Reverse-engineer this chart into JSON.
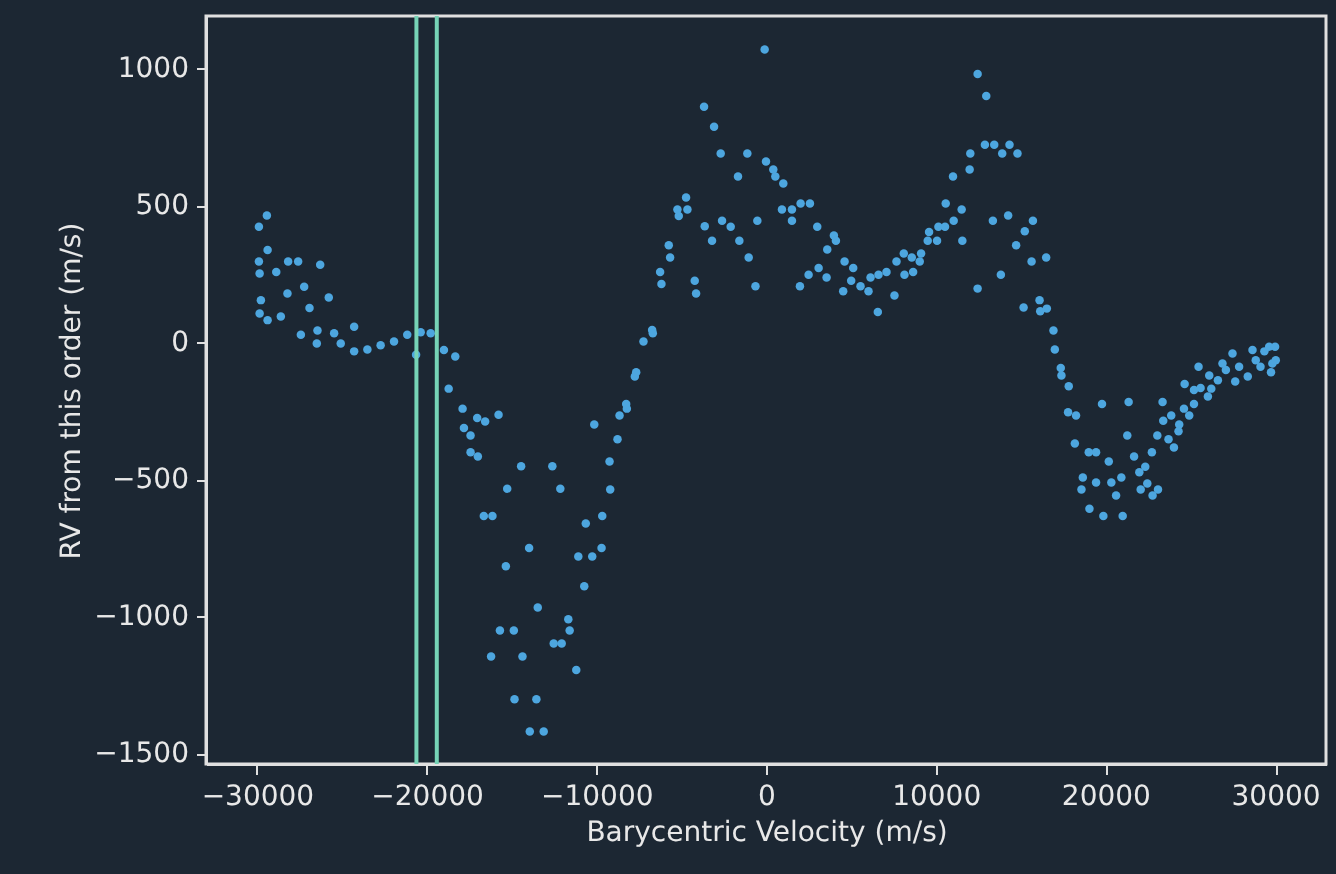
{
  "chart_data": {
    "type": "scatter",
    "xlabel": "Barycentric Velocity (m/s)",
    "ylabel": "RV from this order (m/s)",
    "x": [
      -29412,
      -29882,
      -29370,
      -29882,
      -28160,
      -27570,
      -26270,
      -29840,
      -28860,
      -27215,
      -25765,
      -29765,
      -28200,
      -26900,
      -29840,
      -28590,
      -29370,
      -27410,
      -24270,
      -26430,
      -25450,
      -26470,
      -25060,
      -24270,
      -23490,
      -22710,
      -21920,
      -21140,
      -20350,
      -19760,
      -20620,
      -18980,
      -18310,
      -18700,
      -17880,
      -17800,
      -17410,
      -17020,
      -16550,
      -15760,
      -17410,
      -16980,
      -14430,
      -12590,
      -15250,
      -12120,
      -16630,
      -16120,
      -10620,
      -10120,
      -13960,
      -11060,
      -10240,
      -15330,
      -10710,
      -13450,
      -11650,
      -15680,
      -14860,
      -11570,
      -12510,
      -12040,
      -16200,
      -14350,
      -11180,
      -14820,
      -13530,
      -13920,
      -13100,
      -9690,
      -9650,
      -9180,
      -9220,
      -8750,
      -8630,
      -8200,
      -8240,
      -7730,
      -7650,
      -7220,
      -6710,
      -6670,
      -6160,
      -6240,
      -5650,
      -5730,
      -4200,
      -4120,
      -5220,
      -5140,
      -4710,
      -4630,
      -3650,
      -3060,
      -2670,
      -3610,
      -3180,
      -2590,
      -2080,
      -1650,
      -1100,
      -1570,
      -1020,
      -620,
      -510,
      -80,
      0,
      430,
      550,
      1020,
      940,
      1530,
      1530,
      2040,
      2590,
      2000,
      2510,
      3020,
      3100,
      3570,
      3610,
      4000,
      4120,
      4630,
      4550,
      5020,
      5140,
      5570,
      6040,
      6160,
      6590,
      6630,
      7100,
      7570,
      7690,
      8120,
      8160,
      8590,
      8670,
      9060,
      9140,
      9530,
      9610,
      10080,
      10160,
      10550,
      10590,
      11060,
      11020,
      11530,
      11570,
      12000,
      12040,
      12470,
      12470,
      12980,
      12900,
      13450,
      13920,
      14350,
      14820,
      13370,
      14270,
      15730,
      15250,
      14740,
      15650,
      16510,
      13840,
      15180,
      16120,
      16160,
      16550,
      16940,
      17020,
      17370,
      17410,
      17840,
      17800,
      18270,
      18200,
      19800,
      21370,
      19020,
      19450,
      20200,
      18670,
      18590,
      19450,
      20350,
      20940,
      20630,
      19060,
      19880,
      21020,
      21290,
      21690,
      22350,
      22000,
      22080,
      22470,
      23100,
      22780,
      22740,
      23060,
      23370,
      23720,
      24040,
      23410,
      23880,
      24350,
      24310,
      24670,
      24630,
      24940,
      25220,
      25220,
      25490,
      25610,
      26040,
      26120,
      26240,
      26630,
      26900,
      27100,
      27490,
      27650,
      27880,
      28390,
      28670,
      28860,
      29140,
      29370,
      29650,
      29760,
      30040,
      30000,
      29840
    ],
    "series": [
      {
        "color": "#4da6df",
        "values": [
          462,
          421,
          336,
          294,
          294,
          294,
          282,
          250,
          256,
          202,
          163,
          153,
          177,
          124,
          104,
          93,
          80,
          27,
          56,
          42,
          32,
          -5,
          -5,
          -34,
          -27,
          -12,
          2,
          27,
          36,
          32,
          -46,
          -29,
          -53,
          -170,
          -243,
          -314,
          -341,
          -277,
          -290,
          -265,
          -402,
          -418,
          -453,
          -453,
          -535,
          -535,
          -635,
          -635,
          -662,
          -301,
          -752,
          -783,
          -783,
          -818,
          -891,
          -969,
          -1012,
          -1053,
          -1053,
          -1053,
          -1100,
          -1100,
          -1148,
          -1148,
          -1197,
          -1304,
          -1304,
          -1421,
          -1421,
          -752,
          -635,
          -538,
          -436,
          -355,
          -268,
          -243,
          -226,
          -126,
          -110,
          2,
          44,
          32,
          212,
          256,
          309,
          353,
          224,
          177,
          484,
          460,
          528,
          484,
          859,
          786,
          688,
          423,
          370,
          443,
          421,
          604,
          688,
          370,
          309,
          204,
          443,
          1068,
          659,
          630,
          604,
          579,
          484,
          484,
          443,
          506,
          506,
          204,
          246,
          421,
          270,
          236,
          338,
          389,
          370,
          294,
          185,
          224,
          270,
          204,
          185,
          236,
          110,
          246,
          256,
          170,
          294,
          323,
          246,
          309,
          256,
          294,
          323,
          370,
          402,
          370,
          421,
          421,
          506,
          443,
          604,
          484,
          370,
          630,
          688,
          978,
          195,
          898,
          720,
          720,
          688,
          720,
          688,
          443,
          462,
          443,
          404,
          353,
          294,
          309,
          246,
          126,
          153,
          112,
          122,
          42,
          -27,
          -95,
          -122,
          -161,
          -256,
          -268,
          -370,
          -226,
          -219,
          -402,
          -402,
          -436,
          -494,
          -538,
          -513,
          -513,
          -494,
          -560,
          -608,
          -635,
          -635,
          -341,
          -418,
          -455,
          -475,
          -538,
          -516,
          -538,
          -560,
          -402,
          -341,
          -219,
          -355,
          -385,
          -287,
          -268,
          -301,
          -326,
          -153,
          -243,
          -268,
          -226,
          -175,
          -90,
          -168,
          -199,
          -122,
          -170,
          -139,
          -78,
          -102,
          -42,
          -144,
          -90,
          -126,
          -29,
          -66,
          -90,
          -34,
          -17,
          -110,
          -66,
          -17,
          -78
        ]
      }
    ],
    "xlim": [
      -33000,
      33000
    ],
    "xticks": [
      -30000,
      -20000,
      -10000,
      0,
      10000,
      20000,
      30000
    ],
    "ylim": [
      -1540,
      1190
    ],
    "yticks": [
      -1500,
      -1000,
      -500,
      0,
      500,
      1000
    ],
    "grid": false,
    "marker": "circle",
    "ref_lines": [
      {
        "axis": "x",
        "value": -20600,
        "color": "#76d3b6"
      },
      {
        "axis": "x",
        "value": -19400,
        "color": "#76d3b6"
      }
    ]
  }
}
